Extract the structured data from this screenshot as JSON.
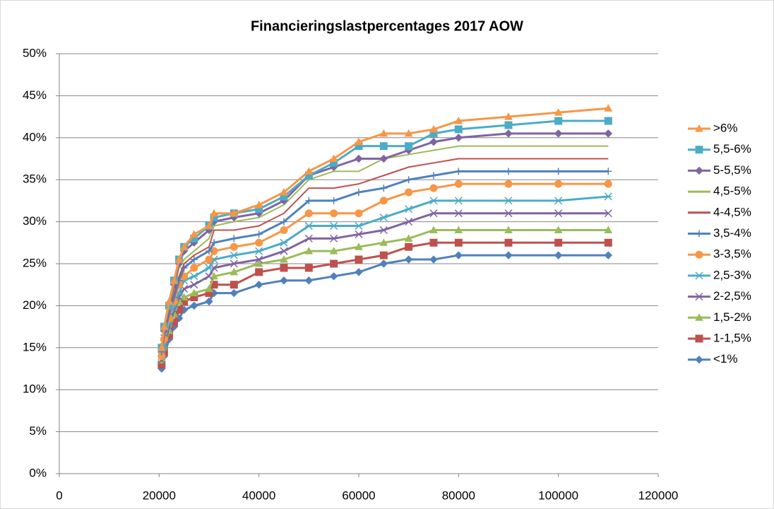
{
  "chart_data": {
    "type": "line",
    "title": "Financieringslastpercentages 2017 AOW",
    "x": [
      20500,
      21000,
      22000,
      23000,
      24000,
      25000,
      27000,
      30000,
      31000,
      35000,
      40000,
      45000,
      50000,
      55000,
      60000,
      65000,
      70000,
      75000,
      80000,
      90000,
      100000,
      110000
    ],
    "xlim": [
      0,
      120000
    ],
    "xticks": [
      0,
      20000,
      40000,
      60000,
      80000,
      100000,
      120000
    ],
    "ylim": [
      0,
      50
    ],
    "yticks": [
      {
        "value": 0,
        "label": "0%"
      },
      {
        "value": 5,
        "label": "5%"
      },
      {
        "value": 10,
        "label": "10%"
      },
      {
        "value": 15,
        "label": "15%"
      },
      {
        "value": 20,
        "label": "20%"
      },
      {
        "value": 25,
        "label": "25%"
      },
      {
        "value": 30,
        "label": "30%"
      },
      {
        "value": 35,
        "label": "35%"
      },
      {
        "value": 40,
        "label": "40%"
      },
      {
        "value": 45,
        "label": "45%"
      },
      {
        "value": 50,
        "label": "50%"
      }
    ],
    "grid": true,
    "legend": "right",
    "series": [
      {
        "name": ">6%",
        "color": "#f79646",
        "marker": "triangle",
        "values": [
          15,
          17.5,
          20.5,
          23,
          25.5,
          27,
          28.5,
          29.5,
          31,
          31,
          32,
          33.5,
          36,
          37.5,
          39.5,
          40.5,
          40.5,
          41,
          42,
          42.5,
          43,
          43.5
        ]
      },
      {
        "name": "5,5-6%",
        "color": "#4bacc6",
        "marker": "square",
        "values": [
          15,
          17.5,
          20,
          23,
          25.5,
          27,
          28,
          29.5,
          30.5,
          31,
          31.5,
          33,
          35.5,
          37,
          39,
          39,
          39,
          40.5,
          41,
          41.5,
          42,
          42
        ]
      },
      {
        "name": "5-5,5%",
        "color": "#8064a2",
        "marker": "diamond",
        "values": [
          15,
          17,
          20,
          22.5,
          25,
          26.5,
          27.5,
          29,
          30,
          30.5,
          31,
          32.5,
          35.5,
          36.5,
          37.5,
          37.5,
          38.5,
          39.5,
          40,
          40.5,
          40.5,
          40.5
        ]
      },
      {
        "name": "4,5-5%",
        "color": "#9bbb59",
        "marker": "none",
        "values": [
          15,
          17,
          20,
          22,
          24.5,
          25.5,
          26.5,
          28,
          29.5,
          30,
          30.5,
          32,
          35,
          36,
          36,
          37.5,
          38,
          38.5,
          39,
          39,
          39,
          39
        ]
      },
      {
        "name": "4-4,5%",
        "color": "#c0504d",
        "marker": "none",
        "values": [
          14.5,
          16.5,
          19.5,
          21.5,
          23.5,
          25,
          26,
          27,
          29,
          29,
          29.5,
          31,
          34,
          34,
          34.5,
          35.5,
          36.5,
          37,
          37.5,
          37.5,
          37.5,
          37.5
        ]
      },
      {
        "name": "3,5-4%",
        "color": "#4f81bd",
        "marker": "plus",
        "values": [
          14.5,
          16.5,
          19,
          21,
          23,
          24.5,
          25.5,
          26.5,
          27.5,
          28,
          28.5,
          30,
          32.5,
          32.5,
          33.5,
          34,
          35,
          35.5,
          36,
          36,
          36,
          36
        ]
      },
      {
        "name": "3-3,5%",
        "color": "#f79646",
        "marker": "circle",
        "values": [
          14,
          16,
          18.5,
          20.5,
          22.5,
          23.5,
          24.5,
          25.5,
          26.5,
          27,
          27.5,
          29,
          31,
          31,
          31,
          32.5,
          33.5,
          34,
          34.5,
          34.5,
          34.5,
          34.5
        ]
      },
      {
        "name": "2,5-3%",
        "color": "#4bacc6",
        "marker": "star",
        "values": [
          14,
          15.5,
          18,
          20,
          21.5,
          23,
          23.5,
          24.5,
          25.5,
          26,
          26.5,
          27.5,
          29.5,
          29.5,
          29.5,
          30.5,
          31.5,
          32.5,
          32.5,
          32.5,
          32.5,
          33
        ]
      },
      {
        "name": "2-2,5%",
        "color": "#8064a2",
        "marker": "cross",
        "values": [
          13.5,
          15,
          17.5,
          19.5,
          21,
          22,
          22.5,
          23.5,
          24.5,
          25,
          25.5,
          26.5,
          28,
          28,
          28.5,
          29,
          30,
          31,
          31,
          31,
          31,
          31
        ]
      },
      {
        "name": "1,5-2%",
        "color": "#9bbb59",
        "marker": "triangle",
        "values": [
          13.5,
          15,
          17,
          19,
          20.5,
          21,
          21.5,
          22,
          23.5,
          24,
          25,
          25.5,
          26.5,
          26.5,
          27,
          27.5,
          28,
          29,
          29,
          29,
          29,
          29
        ]
      },
      {
        "name": "1-1,5%",
        "color": "#c0504d",
        "marker": "square",
        "values": [
          13,
          14.5,
          16.5,
          18,
          19.5,
          20.5,
          21,
          21.5,
          22.5,
          22.5,
          24,
          24.5,
          24.5,
          25,
          25.5,
          26,
          27,
          27.5,
          27.5,
          27.5,
          27.5,
          27.5
        ]
      },
      {
        "name": "<1%",
        "color": "#4f81bd",
        "marker": "diamond",
        "values": [
          12.5,
          14,
          16,
          17.5,
          18.5,
          19.5,
          20,
          20.5,
          21.5,
          21.5,
          22.5,
          23,
          23,
          23.5,
          24,
          25,
          25.5,
          25.5,
          26,
          26,
          26,
          26
        ]
      }
    ]
  }
}
